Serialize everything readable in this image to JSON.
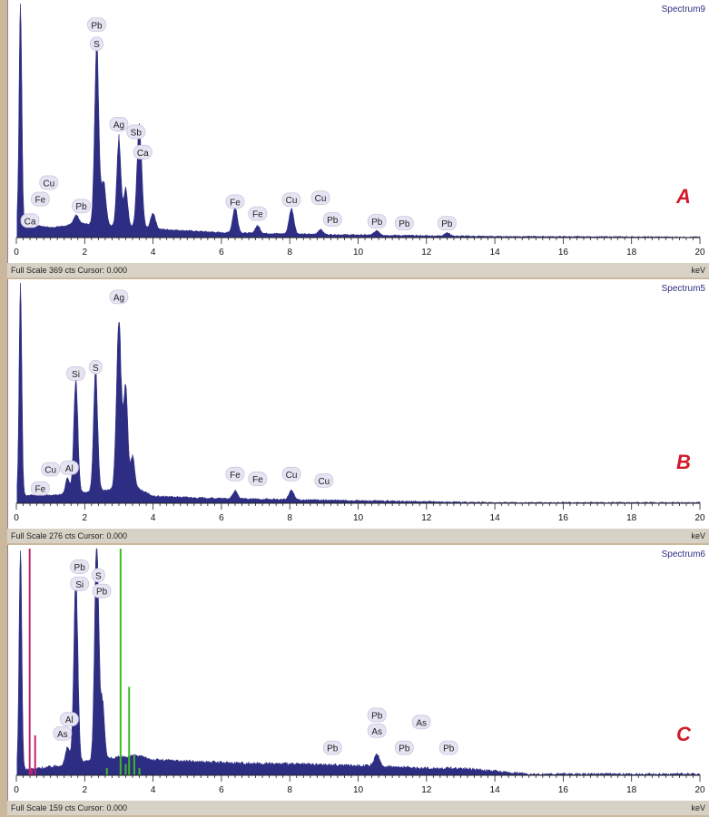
{
  "colors": {
    "spectrum": "#2e2d84",
    "background": "#ffffff",
    "frame": "#cbb79c",
    "statusbar": "#d8d2c6",
    "panel_letter": "#d11a2a",
    "label_bubble": "#e6e4f2",
    "marker_magenta": "#c0286e",
    "marker_green": "#40b828"
  },
  "axis_unit": "keV",
  "chart_data": [
    {
      "type": "area",
      "spectrum_name": "Spectrum9",
      "panel_letter": "A",
      "full_scale_cts": 369,
      "status_text": "Full Scale 369 cts Cursor: 0.000",
      "xlim": [
        0,
        20
      ],
      "ylim": [
        0,
        369
      ],
      "xticks": [
        0,
        2,
        4,
        6,
        8,
        10,
        12,
        14,
        16,
        18,
        20
      ],
      "baseline": [
        [
          0.3,
          22
        ],
        [
          1,
          16
        ],
        [
          2,
          22
        ],
        [
          4,
          14
        ],
        [
          6,
          8
        ],
        [
          9,
          5
        ],
        [
          12,
          3
        ],
        [
          14,
          2
        ],
        [
          20,
          1
        ]
      ],
      "peaks": [
        {
          "x": 0.12,
          "h": 360,
          "w": 0.04
        },
        {
          "x": 1.75,
          "h": 15,
          "w": 0.08
        },
        {
          "x": 2.35,
          "h": 290,
          "w": 0.06
        },
        {
          "x": 2.55,
          "h": 70,
          "w": 0.07
        },
        {
          "x": 3.0,
          "h": 140,
          "w": 0.06
        },
        {
          "x": 3.2,
          "h": 60,
          "w": 0.06
        },
        {
          "x": 3.6,
          "h": 160,
          "w": 0.07
        },
        {
          "x": 4.0,
          "h": 25,
          "w": 0.07
        },
        {
          "x": 6.4,
          "h": 40,
          "w": 0.07
        },
        {
          "x": 7.06,
          "h": 12,
          "w": 0.07
        },
        {
          "x": 8.05,
          "h": 40,
          "w": 0.07
        },
        {
          "x": 8.9,
          "h": 8,
          "w": 0.07
        },
        {
          "x": 10.55,
          "h": 7,
          "w": 0.08
        },
        {
          "x": 12.6,
          "h": 5,
          "w": 0.08
        }
      ],
      "labels": [
        {
          "text": "Pb",
          "x": 2.35,
          "y": 335
        },
        {
          "text": "S",
          "x": 2.35,
          "y": 305
        },
        {
          "text": "Ag",
          "x": 3.0,
          "y": 178
        },
        {
          "text": "Sb",
          "x": 3.5,
          "y": 166
        },
        {
          "text": "Ca",
          "x": 3.7,
          "y": 134
        },
        {
          "text": "Cu",
          "x": 0.95,
          "y": 86
        },
        {
          "text": "Fe",
          "x": 0.7,
          "y": 60
        },
        {
          "text": "Ca",
          "x": 0.4,
          "y": 26
        },
        {
          "text": "Pb",
          "x": 1.9,
          "y": 49
        },
        {
          "text": "Fe",
          "x": 6.4,
          "y": 56
        },
        {
          "text": "Fe",
          "x": 7.06,
          "y": 37
        },
        {
          "text": "Cu",
          "x": 8.05,
          "y": 59
        },
        {
          "text": "Cu",
          "x": 8.9,
          "y": 62
        },
        {
          "text": "Pb",
          "x": 9.25,
          "y": 28
        },
        {
          "text": "Pb",
          "x": 10.55,
          "y": 25
        },
        {
          "text": "Pb",
          "x": 11.35,
          "y": 22
        },
        {
          "text": "Pb",
          "x": 12.6,
          "y": 22
        }
      ],
      "markers": []
    },
    {
      "type": "area",
      "spectrum_name": "Spectrum5",
      "panel_letter": "B",
      "full_scale_cts": 276,
      "status_text": "Full Scale 276 cts Cursor: 0.000",
      "xlim": [
        0,
        20
      ],
      "ylim": [
        0,
        276
      ],
      "xticks": [
        0,
        2,
        4,
        6,
        8,
        10,
        12,
        14,
        16,
        18,
        20
      ],
      "baseline": [
        [
          0.3,
          10
        ],
        [
          1,
          10
        ],
        [
          2,
          14
        ],
        [
          3.5,
          20
        ],
        [
          4,
          9
        ],
        [
          6,
          6
        ],
        [
          9,
          4
        ],
        [
          12,
          2
        ],
        [
          14,
          1
        ],
        [
          20,
          1
        ]
      ],
      "peaks": [
        {
          "x": 0.12,
          "h": 270,
          "w": 0.04
        },
        {
          "x": 1.5,
          "h": 20,
          "w": 0.06
        },
        {
          "x": 1.74,
          "h": 145,
          "w": 0.06
        },
        {
          "x": 2.32,
          "h": 150,
          "w": 0.06
        },
        {
          "x": 3.0,
          "h": 210,
          "w": 0.07
        },
        {
          "x": 3.2,
          "h": 130,
          "w": 0.06
        },
        {
          "x": 3.4,
          "h": 40,
          "w": 0.06
        },
        {
          "x": 6.4,
          "h": 10,
          "w": 0.07
        },
        {
          "x": 8.05,
          "h": 12,
          "w": 0.07
        }
      ],
      "labels": [
        {
          "text": "Ag",
          "x": 3.0,
          "y": 258
        },
        {
          "text": "S",
          "x": 2.32,
          "y": 170
        },
        {
          "text": "Si",
          "x": 1.74,
          "y": 162
        },
        {
          "text": "Al",
          "x": 1.55,
          "y": 44
        },
        {
          "text": "Cu",
          "x": 1.0,
          "y": 42
        },
        {
          "text": "Fe",
          "x": 0.7,
          "y": 18
        },
        {
          "text": "Fe",
          "x": 6.4,
          "y": 36
        },
        {
          "text": "Fe",
          "x": 7.06,
          "y": 30
        },
        {
          "text": "Cu",
          "x": 8.05,
          "y": 36
        },
        {
          "text": "Cu",
          "x": 9.0,
          "y": 28
        }
      ],
      "markers": []
    },
    {
      "type": "area",
      "spectrum_name": "Spectrum6",
      "panel_letter": "C",
      "full_scale_cts": 159,
      "status_text": "Full Scale 159 cts Cursor: 0.000",
      "xlim": [
        0,
        20
      ],
      "ylim": [
        0,
        159
      ],
      "xticks": [
        0,
        2,
        4,
        6,
        8,
        10,
        12,
        14,
        16,
        18,
        20
      ],
      "baseline": [
        [
          0.3,
          4
        ],
        [
          1,
          6
        ],
        [
          2,
          10
        ],
        [
          3.5,
          14
        ],
        [
          4,
          11
        ],
        [
          6,
          9
        ],
        [
          8,
          8
        ],
        [
          10,
          7
        ],
        [
          12,
          5
        ],
        [
          13,
          5
        ],
        [
          14.5,
          2
        ],
        [
          15,
          1
        ],
        [
          20,
          1
        ]
      ],
      "peaks": [
        {
          "x": 0.12,
          "h": 159,
          "w": 0.04
        },
        {
          "x": 1.5,
          "h": 12,
          "w": 0.06
        },
        {
          "x": 1.74,
          "h": 130,
          "w": 0.06
        },
        {
          "x": 2.35,
          "h": 155,
          "w": 0.06
        },
        {
          "x": 2.52,
          "h": 40,
          "w": 0.06
        },
        {
          "x": 10.55,
          "h": 8,
          "w": 0.08
        }
      ],
      "labels": [
        {
          "text": "Pb",
          "x": 1.85,
          "y": 146
        },
        {
          "text": "Si",
          "x": 1.85,
          "y": 134
        },
        {
          "text": "S",
          "x": 2.4,
          "y": 140
        },
        {
          "text": "Pb",
          "x": 2.5,
          "y": 129
        },
        {
          "text": "Al",
          "x": 1.55,
          "y": 39
        },
        {
          "text": "As",
          "x": 1.35,
          "y": 29
        },
        {
          "text": "Pb",
          "x": 9.25,
          "y": 19
        },
        {
          "text": "Pb",
          "x": 10.55,
          "y": 42
        },
        {
          "text": "As",
          "x": 10.55,
          "y": 31
        },
        {
          "text": "As",
          "x": 11.85,
          "y": 37
        },
        {
          "text": "Pb",
          "x": 11.35,
          "y": 19
        },
        {
          "text": "Pb",
          "x": 12.65,
          "y": 19
        }
      ],
      "markers": [
        {
          "x": 0.39,
          "h": 159,
          "color": "magenta"
        },
        {
          "x": 0.55,
          "h": 28,
          "color": "magenta"
        },
        {
          "x": 0.45,
          "h": 5,
          "color": "magenta"
        },
        {
          "x": 3.05,
          "h": 159,
          "color": "green"
        },
        {
          "x": 3.3,
          "h": 62,
          "color": "green"
        },
        {
          "x": 3.45,
          "h": 14,
          "color": "green"
        },
        {
          "x": 2.65,
          "h": 5,
          "color": "green"
        },
        {
          "x": 3.2,
          "h": 8,
          "color": "green"
        },
        {
          "x": 3.6,
          "h": 5,
          "color": "green"
        }
      ]
    }
  ]
}
